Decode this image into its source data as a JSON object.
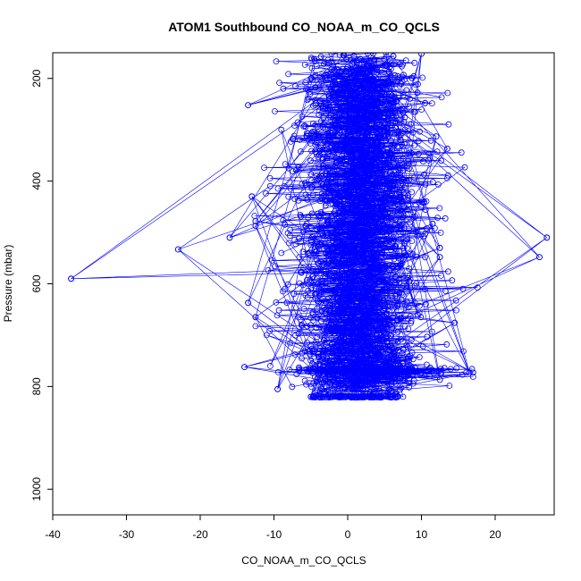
{
  "chart_data": {
    "type": "scatter",
    "title": "ATOM1 Southbound CO_NOAA_m_CO_QCLS",
    "xlabel": "CO_NOAA_m_CO_QCLS",
    "ylabel": "Pressure (mbar)",
    "xlim": [
      -40,
      28
    ],
    "ylim": [
      1050,
      150
    ],
    "y_axis_inverted": true,
    "x_ticks": [
      -40,
      -30,
      -20,
      -10,
      0,
      10,
      20
    ],
    "y_ticks": [
      200,
      400,
      600,
      800,
      1000
    ],
    "grid": false,
    "marker": "open-circle",
    "connected_with_lines": true,
    "series_color": "#0000ff",
    "outlier_points": [
      {
        "x": -37.5,
        "y": 590
      },
      {
        "x": 27,
        "y": 510
      },
      {
        "x": 26,
        "y": 548
      },
      {
        "x": -23,
        "y": 533
      },
      {
        "x": -16,
        "y": 510
      },
      {
        "x": -14,
        "y": 762
      },
      {
        "x": -13.5,
        "y": 252
      },
      {
        "x": -13,
        "y": 430
      },
      {
        "x": -12.5,
        "y": 478
      },
      {
        "x": -12.5,
        "y": 487
      },
      {
        "x": -13.5,
        "y": 637
      },
      {
        "x": -12.5,
        "y": 665
      },
      {
        "x": -9.5,
        "y": 805
      },
      {
        "x": 17,
        "y": 773
      },
      {
        "x": 16.5,
        "y": 773
      },
      {
        "x": 14.5,
        "y": 676
      },
      {
        "x": 13.5,
        "y": 337
      },
      {
        "x": 12.5,
        "y": 548
      },
      {
        "x": 12.5,
        "y": 787
      },
      {
        "x": 12,
        "y": 313
      },
      {
        "x": 12.5,
        "y": 530
      },
      {
        "x": 11.5,
        "y": 483
      },
      {
        "x": 10.5,
        "y": 248
      },
      {
        "x": 10,
        "y": 152
      },
      {
        "x": 9.5,
        "y": 660
      },
      {
        "x": 8.5,
        "y": 740
      },
      {
        "x": 7.5,
        "y": 820
      },
      {
        "x": -8,
        "y": 375
      },
      {
        "x": -9,
        "y": 300
      },
      {
        "x": -9,
        "y": 540
      },
      {
        "x": -10.5,
        "y": 760
      },
      {
        "x": -11,
        "y": 700
      },
      {
        "x": -8.5,
        "y": 610
      },
      {
        "x": -5,
        "y": 820
      }
    ],
    "bulk_profile_summary": [
      {
        "y": 150,
        "x_center": 1.5,
        "x_spread": 3.2
      },
      {
        "y": 200,
        "x_center": 1.5,
        "x_spread": 3.4
      },
      {
        "y": 300,
        "x_center": 1.5,
        "x_spread": 3.4
      },
      {
        "y": 400,
        "x_center": 1.5,
        "x_spread": 3.6
      },
      {
        "y": 500,
        "x_center": 1.5,
        "x_spread": 3.6
      },
      {
        "y": 600,
        "x_center": 1.5,
        "x_spread": 3.4
      },
      {
        "y": 700,
        "x_center": 1.5,
        "x_spread": 3.6
      },
      {
        "y": 780,
        "x_center": 2.0,
        "x_spread": 4.0
      },
      {
        "y": 820,
        "x_center": 1.0,
        "x_spread": 3.8
      }
    ]
  }
}
